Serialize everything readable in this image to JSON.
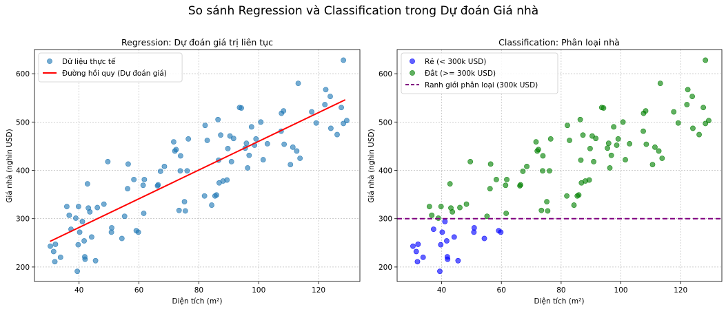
{
  "suptitle": "So sánh Regression và Classification trong Dự đoán Giá nhà",
  "chart_data": [
    {
      "type": "scatter",
      "title": "Regression: Dự đoán giá trị liên tục",
      "xlabel": "Diện tích (m²)",
      "ylabel": "Giá nhà (nghìn USD)",
      "xlim": [
        25.1,
        133.8
      ],
      "ylim": [
        170,
        650
      ],
      "xticks": [
        40,
        60,
        80,
        100,
        120
      ],
      "yticks": [
        200,
        300,
        400,
        500,
        600
      ],
      "grid": true,
      "legend_position": "upper-left",
      "series": [
        {
          "name": "Dữ liệu thực tế",
          "kind": "scatter",
          "color": "#1f77b4",
          "points": [
            [
              30.4,
              243
            ],
            [
              31.5,
              232
            ],
            [
              31.9,
              211
            ],
            [
              32.1,
              247
            ],
            [
              33.8,
              220
            ],
            [
              35.9,
              325
            ],
            [
              36.7,
              307
            ],
            [
              37.3,
              278
            ],
            [
              38.9,
              301
            ],
            [
              39.4,
              191
            ],
            [
              39.7,
              246
            ],
            [
              39.8,
              325
            ],
            [
              40.2,
              272
            ],
            [
              41.1,
              294
            ],
            [
              41.7,
              254
            ],
            [
              41.9,
              221
            ],
            [
              42.0,
              216
            ],
            [
              42.8,
              372
            ],
            [
              43.1,
              322
            ],
            [
              43.6,
              314
            ],
            [
              44.2,
              262
            ],
            [
              45.5,
              213
            ],
            [
              46.1,
              323
            ],
            [
              48.3,
              330
            ],
            [
              49.6,
              418
            ],
            [
              50.8,
              272
            ],
            [
              50.9,
              281
            ],
            [
              54.3,
              259
            ],
            [
              55.2,
              305
            ],
            [
              56.2,
              362
            ],
            [
              56.4,
              413
            ],
            [
              58.3,
              381
            ],
            [
              59.1,
              275
            ],
            [
              59.8,
              272
            ],
            [
              61.4,
              369
            ],
            [
              61.6,
              311
            ],
            [
              61.8,
              381
            ],
            [
              66.2,
              368
            ],
            [
              66.4,
              370
            ],
            [
              67.2,
              398
            ],
            [
              68.5,
              408
            ],
            [
              71.6,
              459
            ],
            [
              72.0,
              440
            ],
            [
              72.4,
              443
            ],
            [
              73.4,
              317
            ],
            [
              73.8,
              399
            ],
            [
              73.9,
              430
            ],
            [
              75.2,
              335
            ],
            [
              75.5,
              316
            ],
            [
              76.1,
              399
            ],
            [
              76.5,
              465
            ],
            [
              81.9,
              347
            ],
            [
              82.1,
              493
            ],
            [
              82.8,
              462
            ],
            [
              84.3,
              328
            ],
            [
              85.4,
              347
            ],
            [
              85.9,
              349
            ],
            [
              86.4,
              505
            ],
            [
              86.6,
              421
            ],
            [
              86.8,
              374
            ],
            [
              87.3,
              473
            ],
            [
              88.1,
              378
            ],
            [
              89.4,
              380
            ],
            [
              89.7,
              445
            ],
            [
              90.4,
              471
            ],
            [
              90.9,
              418
            ],
            [
              91.6,
              466
            ],
            [
              93.6,
              530
            ],
            [
              94.2,
              529
            ],
            [
              95.5,
              446
            ],
            [
              95.9,
              456
            ],
            [
              96.3,
              405
            ],
            [
              96.8,
              431
            ],
            [
              97.6,
              490
            ],
            [
              98.6,
              452
            ],
            [
              99.1,
              465
            ],
            [
              100.7,
              500
            ],
            [
              101.5,
              422
            ],
            [
              102.9,
              455
            ],
            [
              107.5,
              481
            ],
            [
              107.6,
              518
            ],
            [
              108.3,
              523
            ],
            [
              108.5,
              454
            ],
            [
              110.6,
              412
            ],
            [
              111.4,
              448
            ],
            [
              112.7,
              440
            ],
            [
              113.2,
              580
            ],
            [
              113.8,
              425
            ],
            [
              117.7,
              521
            ],
            [
              119.2,
              498
            ],
            [
              122.1,
              536
            ],
            [
              122.4,
              567
            ],
            [
              123.9,
              553
            ],
            [
              124.1,
              487
            ],
            [
              126.2,
              474
            ],
            [
              127.6,
              530
            ],
            [
              128.3,
              628
            ],
            [
              128.3,
              497
            ],
            [
              129.4,
              503
            ]
          ]
        },
        {
          "name": "Đường hồi quy (Dự đoán giá)",
          "kind": "line",
          "color": "#ff0000",
          "points": [
            [
              30.3,
              253
            ],
            [
              128.9,
              546
            ]
          ]
        }
      ]
    },
    {
      "type": "scatter",
      "title": "Classification: Phân loại nhà",
      "xlabel": "Diện tích (m²)",
      "ylabel": "Giá nhà (nghìn USD)",
      "xlim": [
        25.1,
        133.8
      ],
      "ylim": [
        170,
        650
      ],
      "xticks": [
        40,
        60,
        80,
        100,
        120
      ],
      "yticks": [
        200,
        300,
        400,
        500,
        600
      ],
      "grid": true,
      "legend_position": "upper-left",
      "threshold": 300,
      "series": [
        {
          "name": "Rẻ (< 300k USD)",
          "kind": "scatter",
          "color": "#0000ff",
          "points": [
            [
              30.4,
              243
            ],
            [
              31.5,
              232
            ],
            [
              31.9,
              211
            ],
            [
              32.1,
              247
            ],
            [
              33.8,
              220
            ],
            [
              37.3,
              278
            ],
            [
              39.4,
              191
            ],
            [
              39.7,
              246
            ],
            [
              40.2,
              272
            ],
            [
              41.1,
              294
            ],
            [
              41.7,
              254
            ],
            [
              41.9,
              221
            ],
            [
              42.0,
              216
            ],
            [
              44.2,
              262
            ],
            [
              45.5,
              213
            ],
            [
              50.8,
              272
            ],
            [
              50.9,
              281
            ],
            [
              54.3,
              259
            ],
            [
              59.1,
              275
            ],
            [
              59.8,
              272
            ]
          ]
        },
        {
          "name": "Đắt (>= 300k USD)",
          "kind": "scatter",
          "color": "#008000",
          "points": [
            [
              35.9,
              325
            ],
            [
              36.7,
              307
            ],
            [
              38.9,
              301
            ],
            [
              39.8,
              325
            ],
            [
              42.8,
              372
            ],
            [
              43.1,
              322
            ],
            [
              43.6,
              314
            ],
            [
              46.1,
              323
            ],
            [
              48.3,
              330
            ],
            [
              49.6,
              418
            ],
            [
              55.2,
              305
            ],
            [
              56.2,
              362
            ],
            [
              56.4,
              413
            ],
            [
              58.3,
              381
            ],
            [
              61.4,
              369
            ],
            [
              61.6,
              311
            ],
            [
              61.8,
              381
            ],
            [
              66.2,
              368
            ],
            [
              66.4,
              370
            ],
            [
              67.2,
              398
            ],
            [
              68.5,
              408
            ],
            [
              71.6,
              459
            ],
            [
              72.0,
              440
            ],
            [
              72.4,
              443
            ],
            [
              73.4,
              317
            ],
            [
              73.8,
              399
            ],
            [
              73.9,
              430
            ],
            [
              75.2,
              335
            ],
            [
              75.5,
              316
            ],
            [
              76.1,
              399
            ],
            [
              76.5,
              465
            ],
            [
              81.9,
              347
            ],
            [
              82.1,
              493
            ],
            [
              82.8,
              462
            ],
            [
              84.3,
              328
            ],
            [
              85.4,
              347
            ],
            [
              85.9,
              349
            ],
            [
              86.4,
              505
            ],
            [
              86.6,
              421
            ],
            [
              86.8,
              374
            ],
            [
              87.3,
              473
            ],
            [
              88.1,
              378
            ],
            [
              89.4,
              380
            ],
            [
              89.7,
              445
            ],
            [
              90.4,
              471
            ],
            [
              90.9,
              418
            ],
            [
              91.6,
              466
            ],
            [
              93.6,
              530
            ],
            [
              94.2,
              529
            ],
            [
              95.5,
              446
            ],
            [
              95.9,
              456
            ],
            [
              96.3,
              405
            ],
            [
              96.8,
              431
            ],
            [
              97.6,
              490
            ],
            [
              98.6,
              452
            ],
            [
              99.1,
              465
            ],
            [
              100.7,
              500
            ],
            [
              101.5,
              422
            ],
            [
              102.9,
              455
            ],
            [
              107.5,
              481
            ],
            [
              107.6,
              518
            ],
            [
              108.3,
              523
            ],
            [
              108.5,
              454
            ],
            [
              110.6,
              412
            ],
            [
              111.4,
              448
            ],
            [
              112.7,
              440
            ],
            [
              113.2,
              580
            ],
            [
              113.8,
              425
            ],
            [
              117.7,
              521
            ],
            [
              119.2,
              498
            ],
            [
              122.1,
              536
            ],
            [
              122.4,
              567
            ],
            [
              123.9,
              553
            ],
            [
              124.1,
              487
            ],
            [
              126.2,
              474
            ],
            [
              127.6,
              530
            ],
            [
              128.3,
              628
            ],
            [
              128.3,
              497
            ],
            [
              129.4,
              503
            ]
          ]
        },
        {
          "name": "Ranh giới phân loại (300k USD)",
          "kind": "hline",
          "color": "#800080",
          "y": 300
        }
      ]
    }
  ]
}
